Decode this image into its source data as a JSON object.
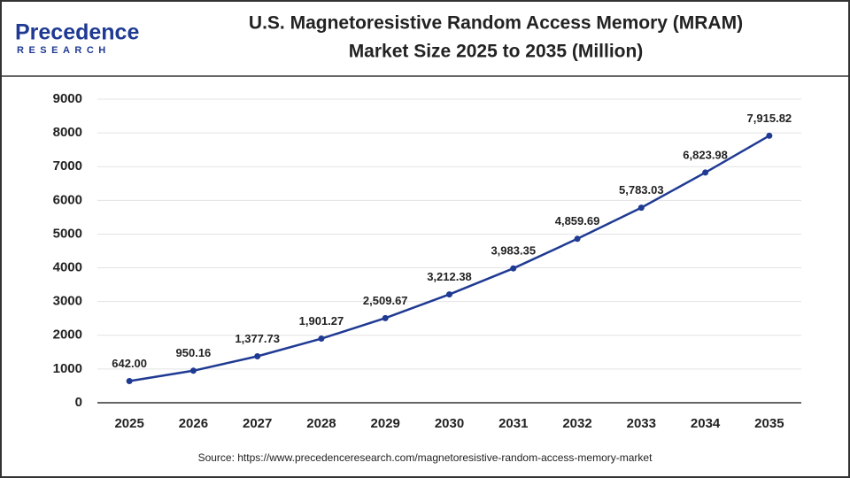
{
  "logo": {
    "name": "Precedence",
    "sub": "RESEARCH"
  },
  "chart_data": {
    "type": "line",
    "title": [
      "U.S. Magnetoresistive Random Access Memory (MRAM)",
      "Market Size 2025 to 2035 (Million)"
    ],
    "categories": [
      "2025",
      "2026",
      "2027",
      "2028",
      "2029",
      "2030",
      "2031",
      "2032",
      "2033",
      "2034",
      "2035"
    ],
    "series": [
      {
        "color": "#1f3a93",
        "values": [
          642.0,
          950.16,
          1377.73,
          1901.27,
          2509.67,
          3212.38,
          3983.35,
          4859.69,
          5783.03,
          6823.98,
          7915.82
        ],
        "value_labels": [
          "642.00",
          "950.16",
          "1,377.73",
          "1,901.27",
          "2,509.67",
          "3,212.38",
          "3,983.35",
          "4,859.69",
          "5,783.03",
          "6,823.98",
          "7,915.82"
        ]
      }
    ],
    "ylim": [
      0,
      9000
    ],
    "yticks": [
      0,
      1000,
      2000,
      3000,
      4000,
      5000,
      6000,
      7000,
      8000,
      9000
    ],
    "grid": true,
    "source": "Source: https://www.precedenceresearch.com/magnetoresistive-random-access-memory-market"
  }
}
